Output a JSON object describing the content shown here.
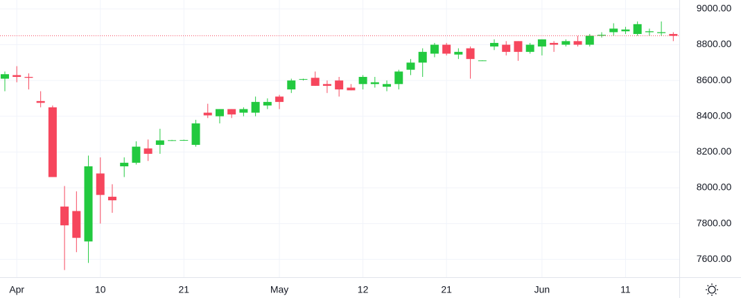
{
  "chart_data": {
    "type": "candlestick",
    "categories": [
      null,
      "Apr",
      null,
      null,
      null,
      null,
      null,
      null,
      "10",
      null,
      null,
      null,
      null,
      null,
      null,
      "21",
      null,
      null,
      null,
      null,
      null,
      null,
      null,
      "May",
      null,
      null,
      null,
      null,
      null,
      null,
      "12",
      null,
      null,
      null,
      null,
      null,
      null,
      "21",
      null,
      null,
      null,
      null,
      null,
      null,
      null,
      "Jun",
      null,
      null,
      null,
      null,
      null,
      null,
      "11",
      null,
      null,
      null,
      null
    ],
    "open": [
      8610,
      8630,
      8620,
      8485,
      8450,
      7895,
      7870,
      7700,
      8080,
      7950,
      8120,
      8140,
      8220,
      8240,
      8265,
      8266,
      8240,
      8420,
      8400,
      8440,
      8420,
      8420,
      8460,
      8510,
      8550,
      8605,
      8615,
      8580,
      8600,
      8560,
      8580,
      8580,
      8565,
      8580,
      8660,
      8700,
      8750,
      8800,
      8745,
      8780,
      8710,
      8790,
      8800,
      8820,
      8760,
      8790,
      8810,
      8800,
      8820,
      8800,
      8850,
      8870,
      8875,
      8860,
      8870,
      8865,
      8860
    ],
    "high": [
      8650,
      8680,
      8640,
      8540,
      8460,
      8010,
      7980,
      8180,
      8170,
      8020,
      8170,
      8260,
      8270,
      8330,
      8268,
      8269,
      8380,
      8470,
      8440,
      8440,
      8450,
      8510,
      8500,
      8520,
      8610,
      8610,
      8650,
      8600,
      8620,
      8580,
      8630,
      8620,
      8600,
      8660,
      8720,
      8780,
      8810,
      8810,
      8780,
      8790,
      8713,
      8830,
      8820,
      8820,
      8810,
      8830,
      8820,
      8830,
      8850,
      8860,
      8870,
      8920,
      8900,
      8930,
      8890,
      8930,
      8870
    ],
    "low": [
      8540,
      8590,
      8550,
      8450,
      8060,
      7540,
      7640,
      7580,
      7800,
      7860,
      8060,
      8130,
      8150,
      8190,
      8262,
      8263,
      8230,
      8390,
      8360,
      8390,
      8400,
      8400,
      8440,
      8440,
      8530,
      8600,
      8570,
      8530,
      8510,
      8545,
      8550,
      8560,
      8540,
      8550,
      8630,
      8620,
      8730,
      8740,
      8720,
      8610,
      8709,
      8770,
      8740,
      8710,
      8750,
      8740,
      8760,
      8790,
      8790,
      8790,
      8840,
      8850,
      8860,
      8850,
      8850,
      8850,
      8820
    ],
    "close": [
      8635,
      8620,
      8615,
      8475,
      8060,
      7790,
      7720,
      8120,
      7960,
      7930,
      8140,
      8230,
      8190,
      8265,
      8266,
      8267,
      8360,
      8405,
      8440,
      8410,
      8440,
      8480,
      8480,
      8480,
      8600,
      8608,
      8570,
      8570,
      8550,
      8545,
      8620,
      8590,
      8580,
      8650,
      8700,
      8760,
      8800,
      8750,
      8760,
      8720,
      8712,
      8810,
      8760,
      8760,
      8800,
      8830,
      8800,
      8820,
      8800,
      8850,
      8855,
      8890,
      8885,
      8915,
      8875,
      8870,
      8850
    ],
    "up_color": "#22c93f",
    "down_color": "#f6465d",
    "ylim": [
      7500,
      9050
    ],
    "yticks": [
      {
        "value": 7600,
        "label": "7600.00"
      },
      {
        "value": 7800,
        "label": "7800.00"
      },
      {
        "value": 8000,
        "label": "8000.00"
      },
      {
        "value": 8200,
        "label": "8200.00"
      },
      {
        "value": 8400,
        "label": "8400.00"
      },
      {
        "value": 8600,
        "label": "8600.00"
      },
      {
        "value": 8800,
        "label": "8800.00"
      },
      {
        "value": 9000,
        "label": "9000.00"
      }
    ],
    "grid": true
  }
}
